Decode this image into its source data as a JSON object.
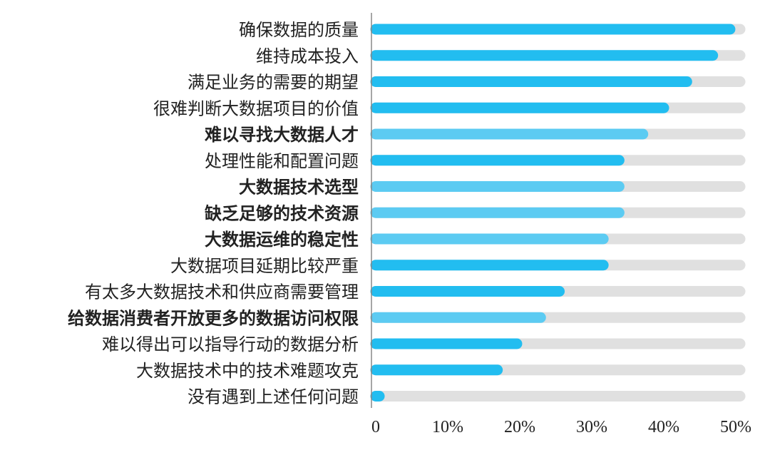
{
  "chart_data": {
    "type": "bar",
    "orientation": "horizontal",
    "categories": [
      "确保数据的质量",
      "维持成本投入",
      "满足业务的需要的期望",
      "很难判断大数据项目的价值",
      "难以寻找大数据人才",
      "处理性能和配置问题",
      "大数据技术选型",
      "缺乏足够的技术资源",
      "大数据运维的稳定性",
      "大数据项目延期比较严重",
      "有太多大数据技术和供应商需要管理",
      "给数据消费者开放更多的数据访问权限",
      "难以得出可以指导行动的数据分析",
      "大数据技术中的技术难题攻克",
      "没有遇到上述任何问题"
    ],
    "values": [
      49.2,
      46.8,
      43.2,
      40.0,
      37.1,
      33.8,
      33.8,
      33.8,
      31.6,
      31.6,
      25.5,
      22.9,
      19.6,
      16.9,
      0.5
    ],
    "emphasized": [
      false,
      false,
      false,
      false,
      true,
      false,
      true,
      true,
      true,
      false,
      false,
      true,
      false,
      false,
      false
    ],
    "xticks": [
      "0",
      "10%",
      "20%",
      "30%",
      "40%",
      "50%"
    ],
    "xlim": [
      0,
      50
    ],
    "title": "",
    "xlabel": "",
    "ylabel": "",
    "grid": false,
    "colors": {
      "bar": "#22bdf0",
      "bar_emphasized": "#5ccbf2",
      "track": "#e0e0e0",
      "axis": "#888888",
      "text": "#222222"
    }
  }
}
